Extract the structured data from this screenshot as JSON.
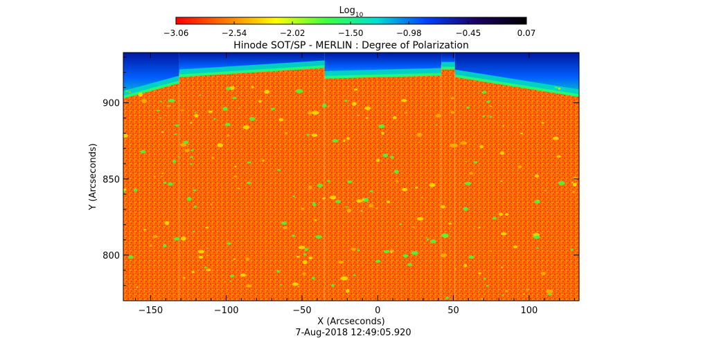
{
  "chart_data": {
    "type": "heatmap",
    "title": "Hinode SOT/SP - MERLIN : Degree of Polarization",
    "xlabel": "X (Arcseconds)",
    "ylabel": "Y (Arcseconds)",
    "subtitle": "7-Aug-2018 12:49:05.920",
    "xlim": [
      -168,
      133
    ],
    "ylim": [
      770,
      933
    ],
    "x_ticks": [
      -150,
      -100,
      -50,
      0,
      50,
      100
    ],
    "x_tick_labels": [
      "−150",
      "−100",
      "−50",
      "0",
      "50",
      "100"
    ],
    "y_ticks": [
      800,
      850,
      900
    ],
    "y_tick_labels": [
      "800",
      "850",
      "900"
    ],
    "colorbar": {
      "label_base": "Log",
      "label_sub": "10",
      "range": [
        -3.06,
        0.07
      ],
      "ticks": [
        -3.06,
        -2.54,
        -2.02,
        -1.5,
        -0.98,
        -0.45,
        0.07
      ],
      "tick_labels": [
        "−3.06",
        "−2.54",
        "−2.02",
        "−1.50",
        "−0.98",
        "−0.45",
        "0.07"
      ],
      "colors": [
        "#ff0000",
        "#ff7a00",
        "#ffff00",
        "#40ff40",
        "#00e0d0",
        "#0040ff",
        "#1a0060",
        "#000000"
      ]
    },
    "raster_strips": [
      {
        "x0": -168,
        "x1": -131,
        "limb_y0": 906,
        "limb_y1": 916
      },
      {
        "x0": -131,
        "x1": -35,
        "limb_y0": 920,
        "limb_y1": 926
      },
      {
        "x0": -35,
        "x1": 42,
        "limb_y0": 919,
        "limb_y1": 921
      },
      {
        "x0": 42,
        "x1": 51,
        "limb_y0": 925,
        "limb_y1": 925
      },
      {
        "x0": 51,
        "x1": 133,
        "limb_y0": 920,
        "limb_y1": 907
      }
    ],
    "background_log10": -2.85,
    "disk_color": "#ff6a00",
    "sky_colors": [
      "#00d8c0",
      "#0060ff",
      "#0018a0"
    ],
    "grid": false
  }
}
